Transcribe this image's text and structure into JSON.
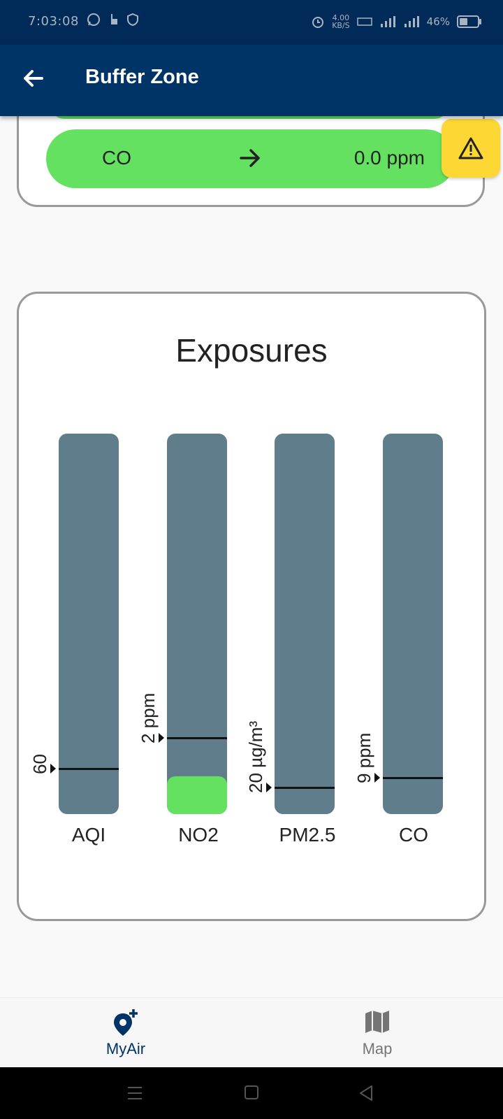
{
  "status_bar": {
    "time": "7:03:08",
    "net_speed": "4.00\nKB/S",
    "battery": "46%",
    "battery_level": 0.46,
    "icons": [
      "whatsapp-icon",
      "touch-icon",
      "shield-icon",
      "alarm-icon",
      "volte-icon",
      "signal-4g-icon",
      "signal-icon",
      "battery-icon"
    ]
  },
  "app_bar": {
    "title": "Buffer Zone",
    "back_icon": "arrow-left-icon"
  },
  "pollutant_row": {
    "name": "CO",
    "arrow_icon": "arrow-right-icon",
    "value": "0.0 ppm",
    "color": "#64e160"
  },
  "warning_button": {
    "icon": "warning-icon",
    "color": "#fdd835"
  },
  "exposures": {
    "title": "Exposures",
    "bars": [
      {
        "name": "AQI",
        "threshold_label": "60",
        "threshold_fraction": 0.12,
        "fill_fraction": 0.0
      },
      {
        "name": "NO2",
        "threshold_label": "2 ppm",
        "threshold_fraction": 0.2,
        "fill_fraction": 0.1
      },
      {
        "name": "PM2.5",
        "threshold_label": "20 µg/m³",
        "threshold_fraction": 0.07,
        "fill_fraction": 0.0
      },
      {
        "name": "CO",
        "threshold_label": "9 ppm",
        "threshold_fraction": 0.095,
        "fill_fraction": 0.0
      }
    ],
    "bar_color": "#607d8b",
    "fill_color": "#64e160"
  },
  "bottom_nav": {
    "items": [
      {
        "label": "MyAir",
        "icon": "add-location-icon",
        "active": true,
        "color": "#003366"
      },
      {
        "label": "Map",
        "icon": "map-icon",
        "active": false,
        "color": "#757575"
      }
    ]
  },
  "system_nav": {
    "icons": [
      "menu-icon",
      "home-icon",
      "back-icon"
    ]
  }
}
